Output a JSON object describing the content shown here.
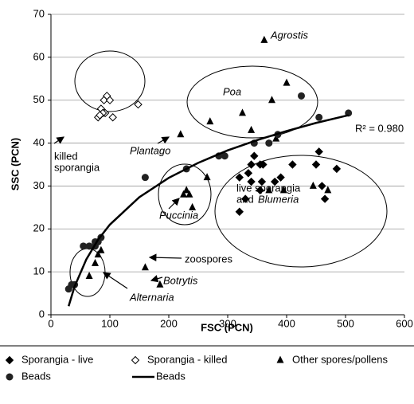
{
  "chart_data": {
    "type": "scatter",
    "xlabel": "FSC (PCN)",
    "ylabel": "SSC (PCN)",
    "xlim": [
      0,
      600
    ],
    "ylim": [
      0,
      70
    ],
    "xticks": [
      0,
      100,
      200,
      300,
      400,
      500,
      600
    ],
    "yticks": [
      0,
      10,
      20,
      30,
      40,
      50,
      60,
      70
    ],
    "grid": true,
    "legend": "bottom",
    "series": [
      {
        "name": "Sporangia - live",
        "marker": "diamond",
        "color": "#000000",
        "x": [
          320,
          330,
          320,
          335,
          340,
          345,
          355,
          360,
          340,
          358,
          380,
          390,
          410,
          450,
          455,
          460,
          465,
          485,
          355
        ],
        "values": [
          24,
          27,
          32,
          33,
          35,
          37,
          35,
          35,
          31,
          31,
          31,
          32,
          35,
          35,
          38,
          30,
          27,
          34,
          29
        ]
      },
      {
        "name": "Sporangia - killed",
        "marker": "open-diamond",
        "color": "#000000",
        "x": [
          95,
          90,
          100,
          85,
          92,
          80,
          105,
          88,
          83,
          148
        ],
        "values": [
          51,
          50,
          50,
          48,
          47,
          46,
          46,
          47,
          46.5,
          49
        ]
      },
      {
        "name": "Other spores/pollens",
        "marker": "triangle",
        "color": "#000000",
        "x": [
          362,
          400,
          375,
          325,
          270,
          220,
          340,
          382,
          230,
          235,
          225,
          240,
          265,
          370,
          395,
          445,
          470,
          65,
          75,
          80,
          85,
          160,
          185
        ],
        "values": [
          64,
          54,
          50,
          47,
          45,
          42,
          43,
          41,
          29,
          28,
          28,
          25,
          32,
          29,
          29,
          30,
          29,
          9,
          12,
          14,
          15,
          11,
          7
        ]
      },
      {
        "name": "Beads",
        "marker": "circle",
        "color": "#222222",
        "x": [
          30,
          35,
          40,
          55,
          65,
          75,
          80,
          85,
          75,
          160,
          230,
          285,
          295,
          345,
          385,
          370,
          425,
          455,
          505
        ],
        "values": [
          6,
          7,
          7,
          16,
          16,
          16,
          17,
          18,
          17,
          32,
          34,
          37,
          37,
          40,
          42,
          40,
          51,
          46,
          47
        ]
      },
      {
        "name": "Beads",
        "marker": "line",
        "color": "#000000",
        "x": [
          30,
          40,
          60,
          80,
          100,
          150,
          200,
          250,
          300,
          350,
          400,
          450,
          505
        ],
        "values": [
          2,
          6.54,
          12.9,
          17.5,
          21.0,
          27.4,
          31.9,
          35.4,
          38.3,
          40.7,
          42.8,
          44.7,
          46.5
        ]
      }
    ],
    "annotations": [
      "Agrostis",
      "Poa",
      "killed",
      "sporangia",
      "Plantago",
      "R² = 0.980",
      "live sporangia",
      "and",
      "Blumeria",
      "Puccinia",
      "zoospores",
      "Botrytis",
      "Alternaria"
    ]
  }
}
